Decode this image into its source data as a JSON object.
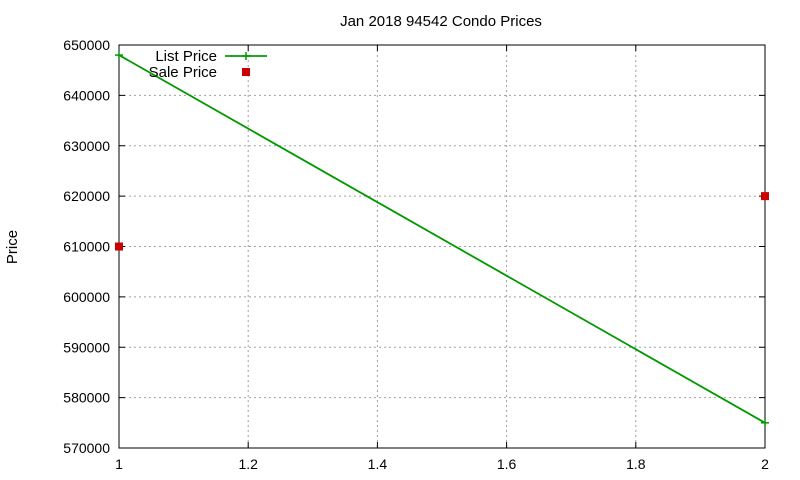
{
  "chart_data": {
    "type": "line",
    "title": "Jan 2018 94542 Condo Prices",
    "xlabel": "",
    "ylabel": "Price",
    "xlim": [
      1,
      2
    ],
    "ylim": [
      570000,
      650000
    ],
    "x_ticks": [
      1,
      1.2,
      1.4,
      1.6,
      1.8,
      2
    ],
    "x_tick_labels": [
      "1",
      "1.2",
      "1.4",
      "1.6",
      "1.8",
      "2"
    ],
    "y_ticks": [
      570000,
      580000,
      590000,
      600000,
      610000,
      620000,
      630000,
      640000,
      650000
    ],
    "y_tick_labels": [
      "570000",
      "580000",
      "590000",
      "600000",
      "610000",
      "620000",
      "630000",
      "640000",
      "650000"
    ],
    "grid": true,
    "legend": {
      "position": "top-left",
      "entries": [
        "List Price",
        "Sale Price"
      ]
    },
    "series": [
      {
        "name": "List Price",
        "style": "linespoints",
        "color": "#009900",
        "x": [
          1,
          2
        ],
        "y": [
          648000,
          575000
        ]
      },
      {
        "name": "Sale Price",
        "style": "points",
        "color": "#cc0000",
        "x": [
          1,
          2
        ],
        "y": [
          610000,
          620000
        ]
      }
    ]
  }
}
